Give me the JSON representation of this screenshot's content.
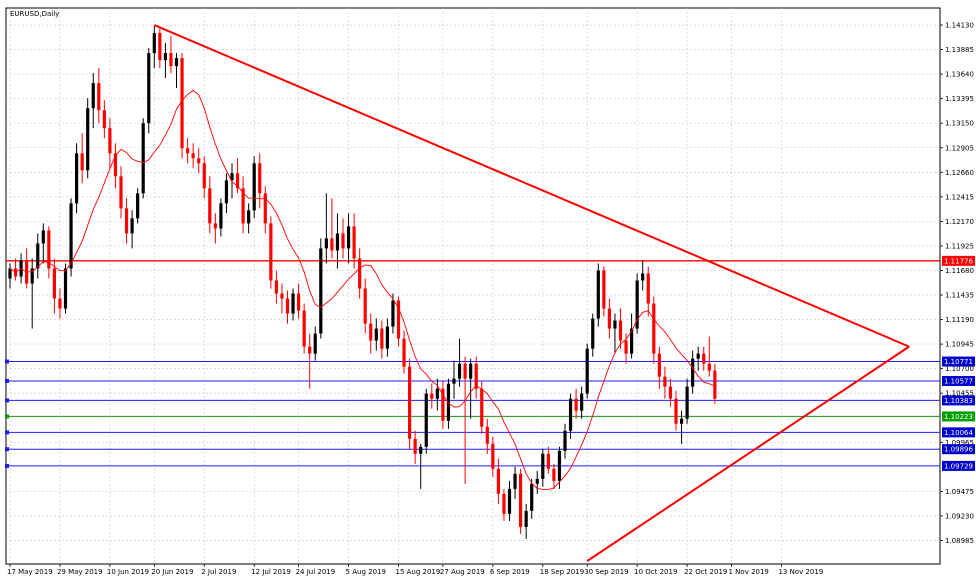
{
  "chart_data": {
    "type": "candlestick",
    "title": "EURUSD,Daily",
    "colors": {
      "bull": "#000000",
      "bear": "#ff0000",
      "grid": "#c8c8c8",
      "ma": "#ff0000",
      "resistance": "#ff0000",
      "triangle": "#ff0000",
      "hline_blue": "#1e1eff",
      "hline_green": "#149614",
      "label_red_bg": "#ff0000",
      "label_blue_bg": "#0000cc",
      "label_green_bg": "#00a000"
    },
    "y_range": [
      1.0875,
      1.143
    ],
    "y_ticks": [
      "1.14130",
      "1.13885",
      "1.13640",
      "1.13395",
      "1.13150",
      "1.12905",
      "1.12660",
      "1.12415",
      "1.12170",
      "1.11925",
      "1.11680",
      "1.11435",
      "1.11190",
      "1.10945",
      "1.10700",
      "1.10455",
      "1.09965",
      "1.09475",
      "1.09230",
      "1.08985"
    ],
    "x_labels": [
      {
        "idx": 0,
        "text": "17 May 2019"
      },
      {
        "idx": 9,
        "text": "29 May 2019"
      },
      {
        "idx": 18,
        "text": "10 Jun 2019"
      },
      {
        "idx": 26,
        "text": "20 Jun 2019"
      },
      {
        "idx": 35,
        "text": "2 Jul 2019"
      },
      {
        "idx": 44,
        "text": "12 Jul 2019"
      },
      {
        "idx": 52,
        "text": "24 Jul 2019"
      },
      {
        "idx": 61,
        "text": "5 Aug 2019"
      },
      {
        "idx": 70,
        "text": "15 Aug 2019"
      },
      {
        "idx": 78,
        "text": "27 Aug 2019"
      },
      {
        "idx": 87,
        "text": "6 Sep 2019"
      },
      {
        "idx": 96,
        "text": "18 Sep 2019"
      },
      {
        "idx": 104,
        "text": "30 Sep 2019"
      },
      {
        "idx": 113,
        "text": "10 Oct 2019"
      },
      {
        "idx": 122,
        "text": "22 Oct 2019"
      },
      {
        "idx": 130,
        "text": "1 Nov 2019"
      },
      {
        "idx": 139,
        "text": "13 Nov 2019"
      }
    ],
    "candles": [
      [
        1.116,
        1.1175,
        1.115,
        1.117
      ],
      [
        1.117,
        1.118,
        1.1158,
        1.1162
      ],
      [
        1.1162,
        1.1185,
        1.1155,
        1.1178
      ],
      [
        1.1178,
        1.119,
        1.115,
        1.1155
      ],
      [
        1.1155,
        1.118,
        1.111,
        1.117
      ],
      [
        1.117,
        1.1205,
        1.116,
        1.1195
      ],
      [
        1.1195,
        1.1215,
        1.1175,
        1.1208
      ],
      [
        1.1208,
        1.1212,
        1.116,
        1.117
      ],
      [
        1.117,
        1.118,
        1.1125,
        1.114
      ],
      [
        1.114,
        1.115,
        1.112,
        1.113
      ],
      [
        1.113,
        1.1175,
        1.1125,
        1.117
      ],
      [
        1.117,
        1.124,
        1.1162,
        1.1235
      ],
      [
        1.1235,
        1.1295,
        1.1225,
        1.1285
      ],
      [
        1.1285,
        1.1305,
        1.1255,
        1.1268
      ],
      [
        1.1268,
        1.134,
        1.126,
        1.133
      ],
      [
        1.133,
        1.1365,
        1.131,
        1.1355
      ],
      [
        1.1355,
        1.137,
        1.1315,
        1.1328
      ],
      [
        1.1328,
        1.1338,
        1.13,
        1.131
      ],
      [
        1.131,
        1.132,
        1.127,
        1.1285
      ],
      [
        1.1285,
        1.1295,
        1.125,
        1.1262
      ],
      [
        1.1262,
        1.1272,
        1.122,
        1.123
      ],
      [
        1.123,
        1.124,
        1.1195,
        1.1205
      ],
      [
        1.1205,
        1.1228,
        1.119,
        1.122
      ],
      [
        1.122,
        1.125,
        1.1215,
        1.1245
      ],
      [
        1.1245,
        1.132,
        1.124,
        1.1315
      ],
      [
        1.1315,
        1.139,
        1.1305,
        1.1385
      ],
      [
        1.1385,
        1.1412,
        1.137,
        1.1405
      ],
      [
        1.1405,
        1.141,
        1.137,
        1.1378
      ],
      [
        1.1378,
        1.1395,
        1.136,
        1.1385
      ],
      [
        1.1385,
        1.1402,
        1.1365,
        1.1372
      ],
      [
        1.1372,
        1.1385,
        1.135,
        1.138
      ],
      [
        1.138,
        1.1385,
        1.128,
        1.129
      ],
      [
        1.129,
        1.13,
        1.1275,
        1.1285
      ],
      [
        1.1285,
        1.1295,
        1.127,
        1.128
      ],
      [
        1.128,
        1.129,
        1.1265,
        1.1275
      ],
      [
        1.1275,
        1.1282,
        1.124,
        1.125
      ],
      [
        1.125,
        1.1262,
        1.1205,
        1.1215
      ],
      [
        1.1215,
        1.1225,
        1.1195,
        1.121
      ],
      [
        1.121,
        1.124,
        1.1202,
        1.1235
      ],
      [
        1.1235,
        1.1265,
        1.1225,
        1.1258
      ],
      [
        1.1258,
        1.1275,
        1.124,
        1.1265
      ],
      [
        1.1265,
        1.128,
        1.1245,
        1.125
      ],
      [
        1.125,
        1.1262,
        1.1205,
        1.1215
      ],
      [
        1.1215,
        1.1235,
        1.1205,
        1.1228
      ],
      [
        1.1228,
        1.1282,
        1.122,
        1.1275
      ],
      [
        1.1275,
        1.1285,
        1.123,
        1.1245
      ],
      [
        1.1245,
        1.1252,
        1.1205,
        1.1215
      ],
      [
        1.1215,
        1.1222,
        1.115,
        1.1158
      ],
      [
        1.1158,
        1.1168,
        1.1135,
        1.1145
      ],
      [
        1.1145,
        1.1155,
        1.1125,
        1.114
      ],
      [
        1.114,
        1.1148,
        1.1115,
        1.1125
      ],
      [
        1.1125,
        1.115,
        1.1118,
        1.1145
      ],
      [
        1.1145,
        1.1155,
        1.112,
        1.1128
      ],
      [
        1.1128,
        1.1135,
        1.1085,
        1.1092
      ],
      [
        1.1092,
        1.1105,
        1.105,
        1.1085
      ],
      [
        1.1085,
        1.1112,
        1.1078,
        1.1105
      ],
      [
        1.1105,
        1.12,
        1.11,
        1.119
      ],
      [
        1.119,
        1.1245,
        1.1175,
        1.12
      ],
      [
        1.12,
        1.124,
        1.118,
        1.1188
      ],
      [
        1.1188,
        1.1225,
        1.117,
        1.1205
      ],
      [
        1.1205,
        1.122,
        1.118,
        1.119
      ],
      [
        1.119,
        1.1225,
        1.1175,
        1.1212
      ],
      [
        1.1212,
        1.1225,
        1.117,
        1.118
      ],
      [
        1.118,
        1.119,
        1.114,
        1.115
      ],
      [
        1.115,
        1.116,
        1.1105,
        1.1115
      ],
      [
        1.1115,
        1.1125,
        1.1085,
        1.1098
      ],
      [
        1.1098,
        1.112,
        1.1088,
        1.111
      ],
      [
        1.111,
        1.1118,
        1.108,
        1.109
      ],
      [
        1.109,
        1.112,
        1.1082,
        1.1112
      ],
      [
        1.1112,
        1.1145,
        1.1105,
        1.1138
      ],
      [
        1.1138,
        1.1142,
        1.1092,
        1.11
      ],
      [
        1.11,
        1.1108,
        1.1065,
        1.1072
      ],
      [
        1.1072,
        1.108,
        1.099,
        1.1
      ],
      [
        1.1,
        1.1008,
        1.0975,
        1.0985
      ],
      [
        1.0985,
        1.0995,
        1.095,
        1.0992
      ],
      [
        1.0992,
        1.105,
        1.0985,
        1.1045
      ],
      [
        1.1045,
        1.1055,
        1.103,
        1.104
      ],
      [
        1.104,
        1.106,
        1.1028,
        1.105
      ],
      [
        1.105,
        1.1058,
        1.101,
        1.1018
      ],
      [
        1.1018,
        1.106,
        1.101,
        1.1055
      ],
      [
        1.1055,
        1.1078,
        1.104,
        1.106
      ],
      [
        1.106,
        1.11,
        1.1052,
        1.1075
      ],
      [
        1.1075,
        1.1082,
        1.0955,
        1.106
      ],
      [
        1.106,
        1.108,
        1.102,
        1.1075
      ],
      [
        1.1075,
        1.1082,
        1.104,
        1.105
      ],
      [
        1.105,
        1.1058,
        1.1005,
        1.1012
      ],
      [
        1.1012,
        1.102,
        1.0985,
        1.0995
      ],
      [
        1.0995,
        1.1002,
        1.0962,
        1.097
      ],
      [
        1.097,
        1.098,
        1.0935,
        1.0945
      ],
      [
        1.0945,
        1.095,
        1.0918,
        1.0925
      ],
      [
        1.0925,
        1.0958,
        1.0918,
        1.095
      ],
      [
        1.095,
        1.0972,
        1.094,
        1.0965
      ],
      [
        1.0965,
        1.097,
        1.0905,
        1.0912
      ],
      [
        1.0912,
        1.0935,
        1.09,
        1.0928
      ],
      [
        1.0928,
        1.096,
        1.092,
        1.0955
      ],
      [
        1.0955,
        1.0968,
        1.0945,
        1.096
      ],
      [
        1.096,
        1.099,
        1.0952,
        1.0985
      ],
      [
        1.0985,
        1.0992,
        1.0965,
        1.097
      ],
      [
        1.097,
        1.0975,
        1.095,
        1.0958
      ],
      [
        1.0958,
        1.0992,
        1.095,
        1.0988
      ],
      [
        1.0988,
        1.1015,
        1.098,
        1.1008
      ],
      [
        1.1008,
        1.1045,
        1.1,
        1.104
      ],
      [
        1.104,
        1.105,
        1.102,
        1.1028
      ],
      [
        1.1028,
        1.1052,
        1.102,
        1.1045
      ],
      [
        1.1045,
        1.1095,
        1.104,
        1.109
      ],
      [
        1.109,
        1.1125,
        1.1082,
        1.112
      ],
      [
        1.112,
        1.1175,
        1.1112,
        1.1168
      ],
      [
        1.1168,
        1.1172,
        1.1122,
        1.113
      ],
      [
        1.113,
        1.114,
        1.11,
        1.111
      ],
      [
        1.111,
        1.1125,
        1.1085,
        1.1118
      ],
      [
        1.1118,
        1.113,
        1.109,
        1.1098
      ],
      [
        1.1098,
        1.1105,
        1.1075,
        1.1085
      ],
      [
        1.1085,
        1.1125,
        1.108,
        1.111
      ],
      [
        1.111,
        1.1165,
        1.1105,
        1.1158
      ],
      [
        1.1158,
        1.1178,
        1.1148,
        1.1165
      ],
      [
        1.1165,
        1.1172,
        1.1122,
        1.1135
      ],
      [
        1.1135,
        1.1142,
        1.1075,
        1.1085
      ],
      [
        1.1085,
        1.1092,
        1.105,
        1.1062
      ],
      [
        1.1062,
        1.1072,
        1.104,
        1.1052
      ],
      [
        1.1052,
        1.106,
        1.1032,
        1.104
      ],
      [
        1.104,
        1.1048,
        1.1008,
        1.1015
      ],
      [
        1.1015,
        1.1028,
        1.0995,
        1.102
      ],
      [
        1.102,
        1.106,
        1.1015,
        1.1052
      ],
      [
        1.1052,
        1.1088,
        1.1045,
        1.108
      ],
      [
        1.108,
        1.1092,
        1.1068,
        1.1085
      ],
      [
        1.1085,
        1.1092,
        1.1068,
        1.1075
      ],
      [
        1.1075,
        1.1102,
        1.1062,
        1.1068
      ],
      [
        1.1068,
        1.1075,
        1.1035,
        1.104
      ]
    ],
    "ma_period": 10,
    "resistance_level": 1.11776,
    "resistance_label": "1.11776",
    "hlines": [
      {
        "value": 1.10771,
        "label": "1.10771",
        "color": "blue"
      },
      {
        "value": 1.10577,
        "label": "1.10577",
        "color": "blue"
      },
      {
        "value": 1.10383,
        "label": "1.10383",
        "color": "blue"
      },
      {
        "value": 1.10223,
        "label": "1.10223",
        "color": "green"
      },
      {
        "value": 1.10064,
        "label": "1.10064",
        "color": "blue"
      },
      {
        "value": 1.09896,
        "label": "1.09896",
        "color": "blue"
      },
      {
        "value": 1.09729,
        "label": "1.09729",
        "color": "blue"
      }
    ],
    "triangle": {
      "upper_start": {
        "idx": 26,
        "price": 1.1413
      },
      "apex": {
        "idx": 162,
        "price": 1.1092
      },
      "lower_start": {
        "idx": 104,
        "price": 1.0878
      }
    }
  }
}
